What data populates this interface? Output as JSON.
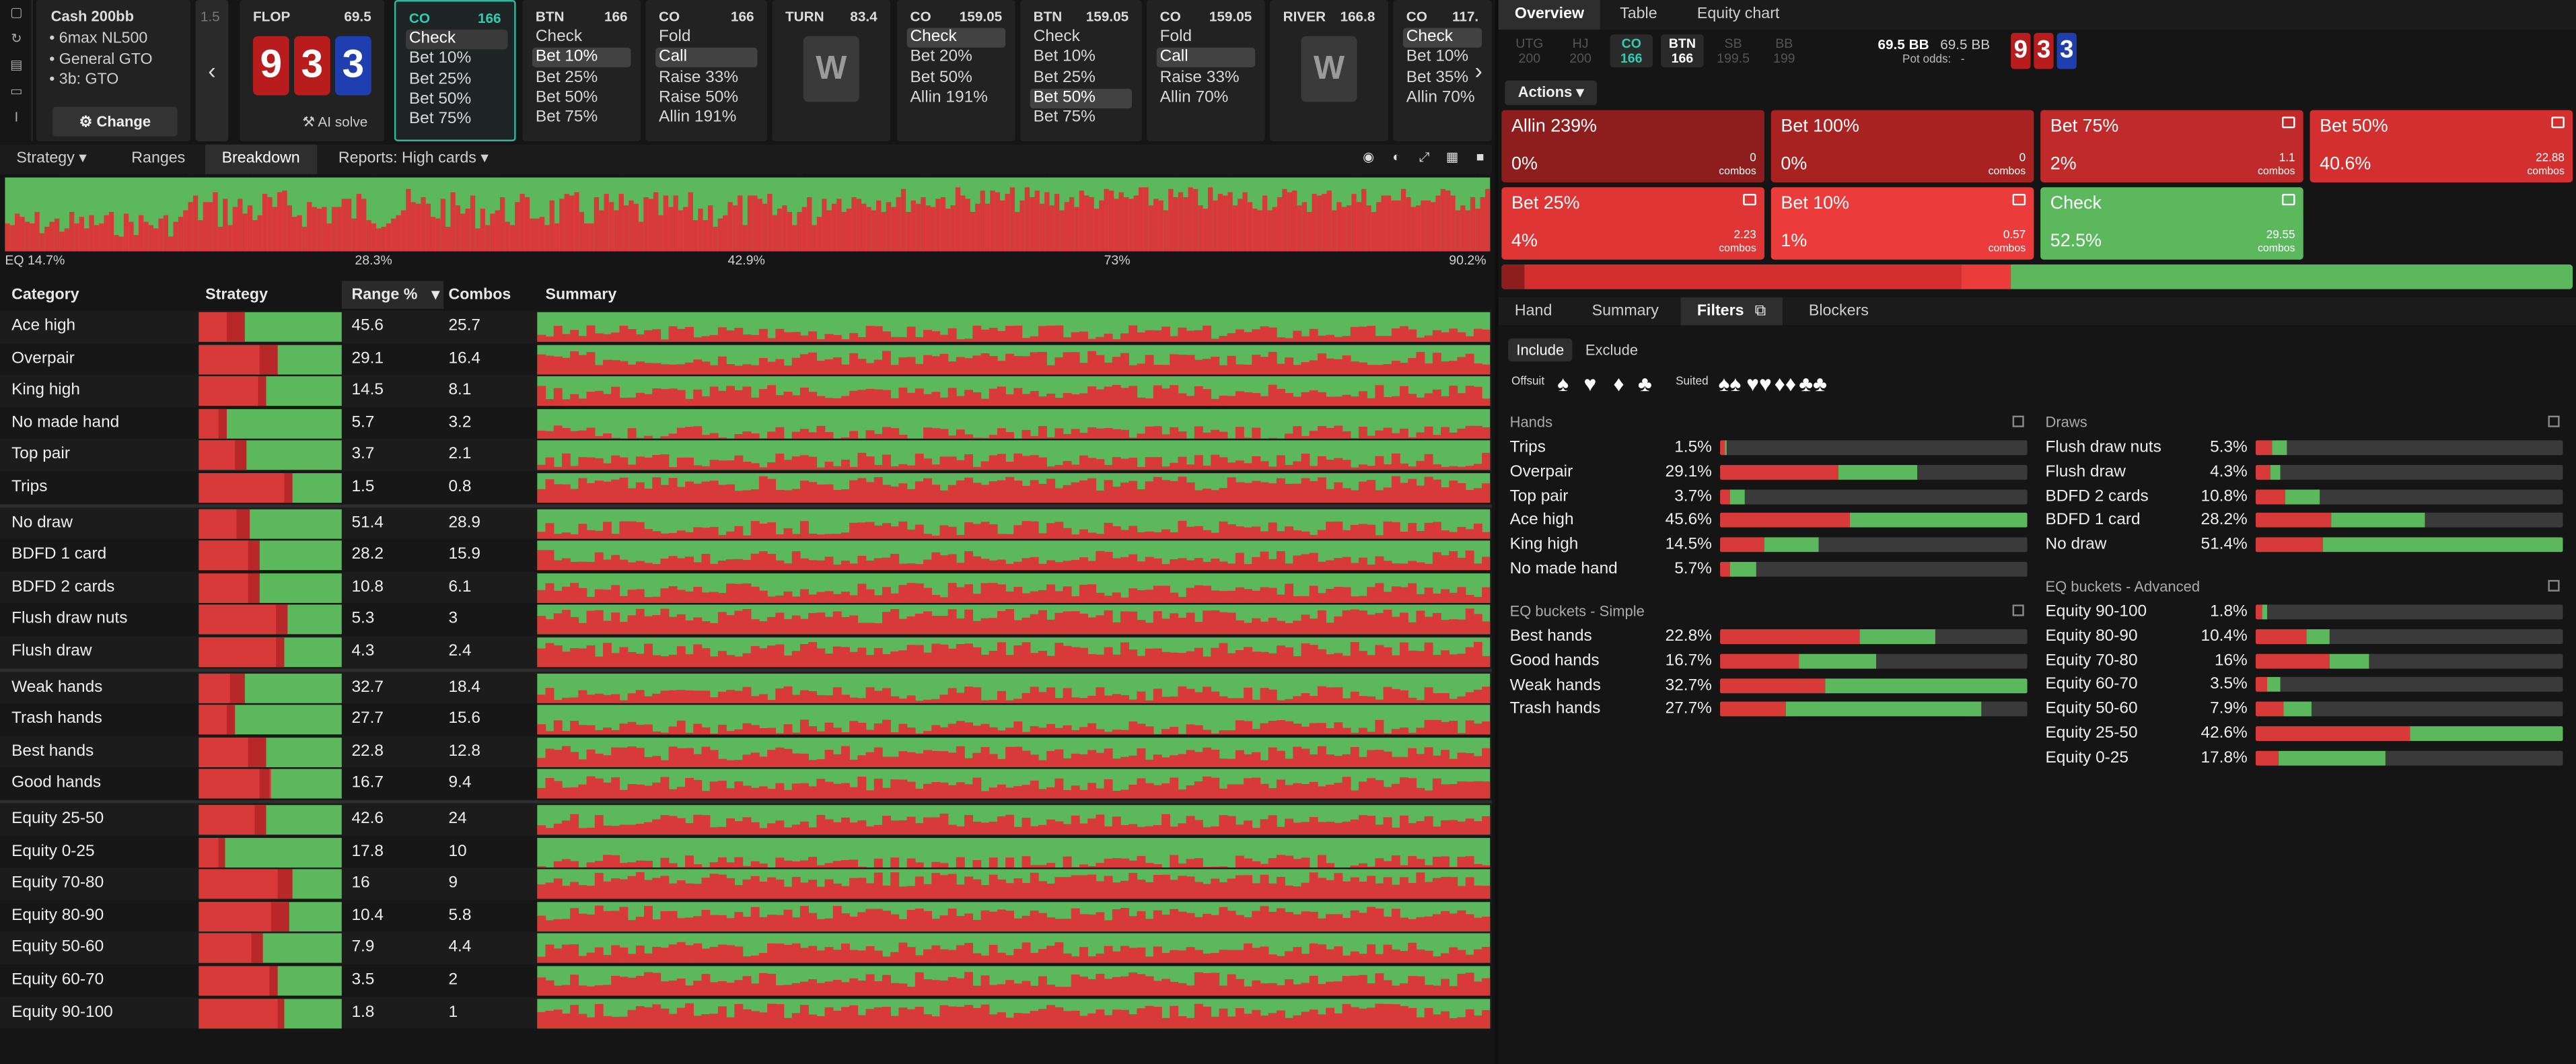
{
  "toolbar": {
    "icons": [
      "square-icon",
      "refresh-icon",
      "save-icon",
      "car-icon",
      "text-cursor-icon"
    ]
  },
  "game": {
    "title": "Cash 200bb",
    "details": [
      "6max NL500",
      "General GTO",
      "3b: GTO"
    ],
    "change_label": "Change",
    "prev_label": "1.5"
  },
  "nodes": [
    {
      "id": "flop",
      "pos": "FLOP",
      "val": "69.5",
      "kind": "board",
      "ai_label": "AI solve"
    },
    {
      "id": "co1",
      "pos": "CO",
      "val": "166",
      "kind": "actions",
      "selected": true,
      "options": [
        "Check",
        "Bet 10%",
        "Bet 25%",
        "Bet 50%",
        "Bet 75%"
      ],
      "active": 0
    },
    {
      "id": "btn1",
      "pos": "BTN",
      "val": "166",
      "kind": "actions",
      "options": [
        "Check",
        "Bet 10%",
        "Bet 25%",
        "Bet 50%",
        "Bet 75%"
      ],
      "active": 1
    },
    {
      "id": "co2",
      "pos": "CO",
      "val": "166",
      "kind": "actions",
      "options": [
        "Fold",
        "Call",
        "Raise 33%",
        "Raise 50%",
        "Allin 191%"
      ],
      "active": 1
    },
    {
      "id": "turn",
      "pos": "TURN",
      "val": "83.4",
      "kind": "street"
    },
    {
      "id": "co3",
      "pos": "CO",
      "val": "159.05",
      "kind": "actions",
      "options": [
        "Check",
        "Bet 20%",
        "Bet 50%",
        "Allin 191%"
      ],
      "active": 0
    },
    {
      "id": "btn2",
      "pos": "BTN",
      "val": "159.05",
      "kind": "actions",
      "options": [
        "Check",
        "Bet 10%",
        "Bet 25%",
        "Bet 50%",
        "Bet 75%"
      ],
      "active": 3
    },
    {
      "id": "co4",
      "pos": "CO",
      "val": "159.05",
      "kind": "actions",
      "options": [
        "Fold",
        "Call",
        "Raise 33%",
        "Allin 70%"
      ],
      "active": 1
    },
    {
      "id": "river",
      "pos": "RIVER",
      "val": "166.8",
      "kind": "street"
    },
    {
      "id": "co5",
      "pos": "CO",
      "val": "117.",
      "kind": "actions",
      "options": [
        "Check",
        "Bet 10%",
        "Bet 35%",
        "Allin 70%"
      ],
      "active": 0
    }
  ],
  "board": {
    "cards": [
      {
        "rank": "9",
        "color": "#b81c1c"
      },
      {
        "rank": "3",
        "color": "#b81c1c"
      },
      {
        "rank": "3",
        "color": "#1f3fb0"
      }
    ]
  },
  "left_tabs": {
    "strategy": "Strategy",
    "ranges": "Ranges",
    "breakdown": "Breakdown",
    "reports": "Reports: High cards"
  },
  "eq_chart": {
    "labels": [
      "EQ 14.7%",
      "28.3%",
      "42.9%",
      "73%",
      "90.2%"
    ]
  },
  "table": {
    "headers": {
      "category": "Category",
      "strategy": "Strategy",
      "range": "Range %",
      "combos": "Combos",
      "summary": "Summary"
    },
    "groups": [
      [
        {
          "name": "Ace high",
          "range": "45.6",
          "combos": "25.7",
          "bet": 0.32,
          "big": 0.12
        },
        {
          "name": "Overpair",
          "range": "29.1",
          "combos": "16.4",
          "bet": 0.55,
          "big": 0.12
        },
        {
          "name": "King high",
          "range": "14.5",
          "combos": "8.1",
          "bet": 0.47,
          "big": 0.06
        },
        {
          "name": "No made hand",
          "range": "5.7",
          "combos": "3.2",
          "bet": 0.2,
          "big": 0.06
        },
        {
          "name": "Top pair",
          "range": "3.7",
          "combos": "2.1",
          "bet": 0.33,
          "big": 0.08
        },
        {
          "name": "Trips",
          "range": "1.5",
          "combos": "0.8",
          "bet": 0.65,
          "big": 0.05
        }
      ],
      [
        {
          "name": "No draw",
          "range": "51.4",
          "combos": "28.9",
          "bet": 0.36,
          "big": 0.1
        },
        {
          "name": "BDFD 1 card",
          "range": "28.2",
          "combos": "15.9",
          "bet": 0.43,
          "big": 0.08
        },
        {
          "name": "BDFD 2 cards",
          "range": "10.8",
          "combos": "6.1",
          "bet": 0.43,
          "big": 0.08
        },
        {
          "name": "Flush draw nuts",
          "range": "5.3",
          "combos": "3",
          "bet": 0.62,
          "big": 0.08
        },
        {
          "name": "Flush draw",
          "range": "4.3",
          "combos": "2.4",
          "bet": 0.6,
          "big": 0.06
        }
      ],
      [
        {
          "name": "Weak hands",
          "range": "32.7",
          "combos": "18.4",
          "bet": 0.32,
          "big": 0.1
        },
        {
          "name": "Trash hands",
          "range": "27.7",
          "combos": "15.6",
          "bet": 0.25,
          "big": 0.05
        },
        {
          "name": "Best hands",
          "range": "22.8",
          "combos": "12.8",
          "bet": 0.47,
          "big": 0.12
        },
        {
          "name": "Good hands",
          "range": "16.7",
          "combos": "9.4",
          "bet": 0.5,
          "big": 0.08
        }
      ],
      [
        {
          "name": "Equity 25-50",
          "range": "42.6",
          "combos": "24",
          "bet": 0.47,
          "big": 0.08
        },
        {
          "name": "Equity 0-25",
          "range": "17.8",
          "combos": "10",
          "bet": 0.18,
          "big": 0.04
        },
        {
          "name": "Equity 70-80",
          "range": "16",
          "combos": "9",
          "bet": 0.65,
          "big": 0.1
        },
        {
          "name": "Equity 80-90",
          "range": "10.4",
          "combos": "5.8",
          "bet": 0.63,
          "big": 0.12
        },
        {
          "name": "Equity 50-60",
          "range": "7.9",
          "combos": "4.4",
          "bet": 0.45,
          "big": 0.08
        },
        {
          "name": "Equity 60-70",
          "range": "3.5",
          "combos": "2",
          "bet": 0.55,
          "big": 0.06
        },
        {
          "name": "Equity 90-100",
          "range": "1.8",
          "combos": "1",
          "bet": 0.6,
          "big": 0.05
        }
      ]
    ]
  },
  "right_tabs": {
    "overview": "Overview",
    "table": "Table",
    "equity_chart": "Equity chart"
  },
  "positions": [
    {
      "name": "UTG",
      "stack": "200",
      "state": "off"
    },
    {
      "name": "HJ",
      "stack": "200",
      "state": "off"
    },
    {
      "name": "CO",
      "stack": "166",
      "state": "on"
    },
    {
      "name": "BTN",
      "stack": "166",
      "state": "cur"
    },
    {
      "name": "SB",
      "stack": "199.5",
      "state": "off"
    },
    {
      "name": "BB",
      "stack": "199",
      "state": "off"
    }
  ],
  "pot": {
    "bb1": "69.5 BB",
    "bb2": "69.5 BB",
    "odds_label": "Pot odds:",
    "odds_value": "-"
  },
  "actions_label": "Actions",
  "tiles": [
    {
      "name": "Allin 239%",
      "pct": "0%",
      "combos": "0",
      "color": "#8e1d1d"
    },
    {
      "name": "Bet 100%",
      "pct": "0%",
      "combos": "0",
      "color": "#a82222"
    },
    {
      "name": "Bet 75%",
      "pct": "2%",
      "combos": "1.1",
      "color": "#c12a2a"
    },
    {
      "name": "Bet 50%",
      "pct": "40.6%",
      "combos": "22.88",
      "color": "#d32f2f"
    },
    {
      "name": "Bet 25%",
      "pct": "4%",
      "combos": "2.23",
      "color": "#e03535"
    },
    {
      "name": "Bet 10%",
      "pct": "1%",
      "combos": "0.57",
      "color": "#ec3b3b"
    },
    {
      "name": "Check",
      "pct": "52.5%",
      "combos": "29.55",
      "color": "#5cb85c"
    }
  ],
  "combos_word": "combos",
  "bottom_tabs": {
    "hand": "Hand",
    "summary": "Summary",
    "filters": "Filters",
    "blockers": "Blockers"
  },
  "filter_mode": {
    "include": "Include",
    "exclude": "Exclude"
  },
  "suit_labels": {
    "offsuit": "Offsuit",
    "suited": "Suited"
  },
  "filters": {
    "hands_title": "Hands",
    "hands": [
      {
        "name": "Trips",
        "pct": "1.5%",
        "bar": 0.02,
        "red": 0.7
      },
      {
        "name": "Overpair",
        "pct": "29.1%",
        "bar": 0.64,
        "red": 0.6
      },
      {
        "name": "Top pair",
        "pct": "3.7%",
        "bar": 0.08,
        "red": 0.4
      },
      {
        "name": "Ace high",
        "pct": "45.6%",
        "bar": 1.0,
        "red": 0.42
      },
      {
        "name": "King high",
        "pct": "14.5%",
        "bar": 0.32,
        "red": 0.45
      },
      {
        "name": "No made hand",
        "pct": "5.7%",
        "bar": 0.12,
        "red": 0.25
      }
    ],
    "eq_simple_title": "EQ buckets - Simple",
    "eq_simple": [
      {
        "name": "Best hands",
        "pct": "22.8%",
        "bar": 0.7,
        "red": 0.65
      },
      {
        "name": "Good hands",
        "pct": "16.7%",
        "bar": 0.51,
        "red": 0.5
      },
      {
        "name": "Weak hands",
        "pct": "32.7%",
        "bar": 1.0,
        "red": 0.34
      },
      {
        "name": "Trash hands",
        "pct": "27.7%",
        "bar": 0.85,
        "red": 0.25
      }
    ],
    "draws_title": "Draws",
    "draws": [
      {
        "name": "Flush draw nuts",
        "pct": "5.3%",
        "bar": 0.1,
        "red": 0.55
      },
      {
        "name": "Flush draw",
        "pct": "4.3%",
        "bar": 0.08,
        "red": 0.6
      },
      {
        "name": "BDFD 2 cards",
        "pct": "10.8%",
        "bar": 0.21,
        "red": 0.45
      },
      {
        "name": "BDFD 1 card",
        "pct": "28.2%",
        "bar": 0.55,
        "red": 0.45
      },
      {
        "name": "No draw",
        "pct": "51.4%",
        "bar": 1.0,
        "red": 0.22
      }
    ],
    "eq_adv_title": "EQ buckets - Advanced",
    "eq_adv": [
      {
        "name": "Equity 90-100",
        "pct": "1.8%",
        "bar": 0.04,
        "red": 0.6
      },
      {
        "name": "Equity 80-90",
        "pct": "10.4%",
        "bar": 0.24,
        "red": 0.7
      },
      {
        "name": "Equity 70-80",
        "pct": "16%",
        "bar": 0.37,
        "red": 0.65
      },
      {
        "name": "Equity 60-70",
        "pct": "3.5%",
        "bar": 0.08,
        "red": 0.5
      },
      {
        "name": "Equity 50-60",
        "pct": "7.9%",
        "bar": 0.18,
        "red": 0.5
      },
      {
        "name": "Equity 25-50",
        "pct": "42.6%",
        "bar": 1.0,
        "red": 0.5
      },
      {
        "name": "Equity 0-25",
        "pct": "17.8%",
        "bar": 0.42,
        "red": 0.18
      }
    ]
  }
}
